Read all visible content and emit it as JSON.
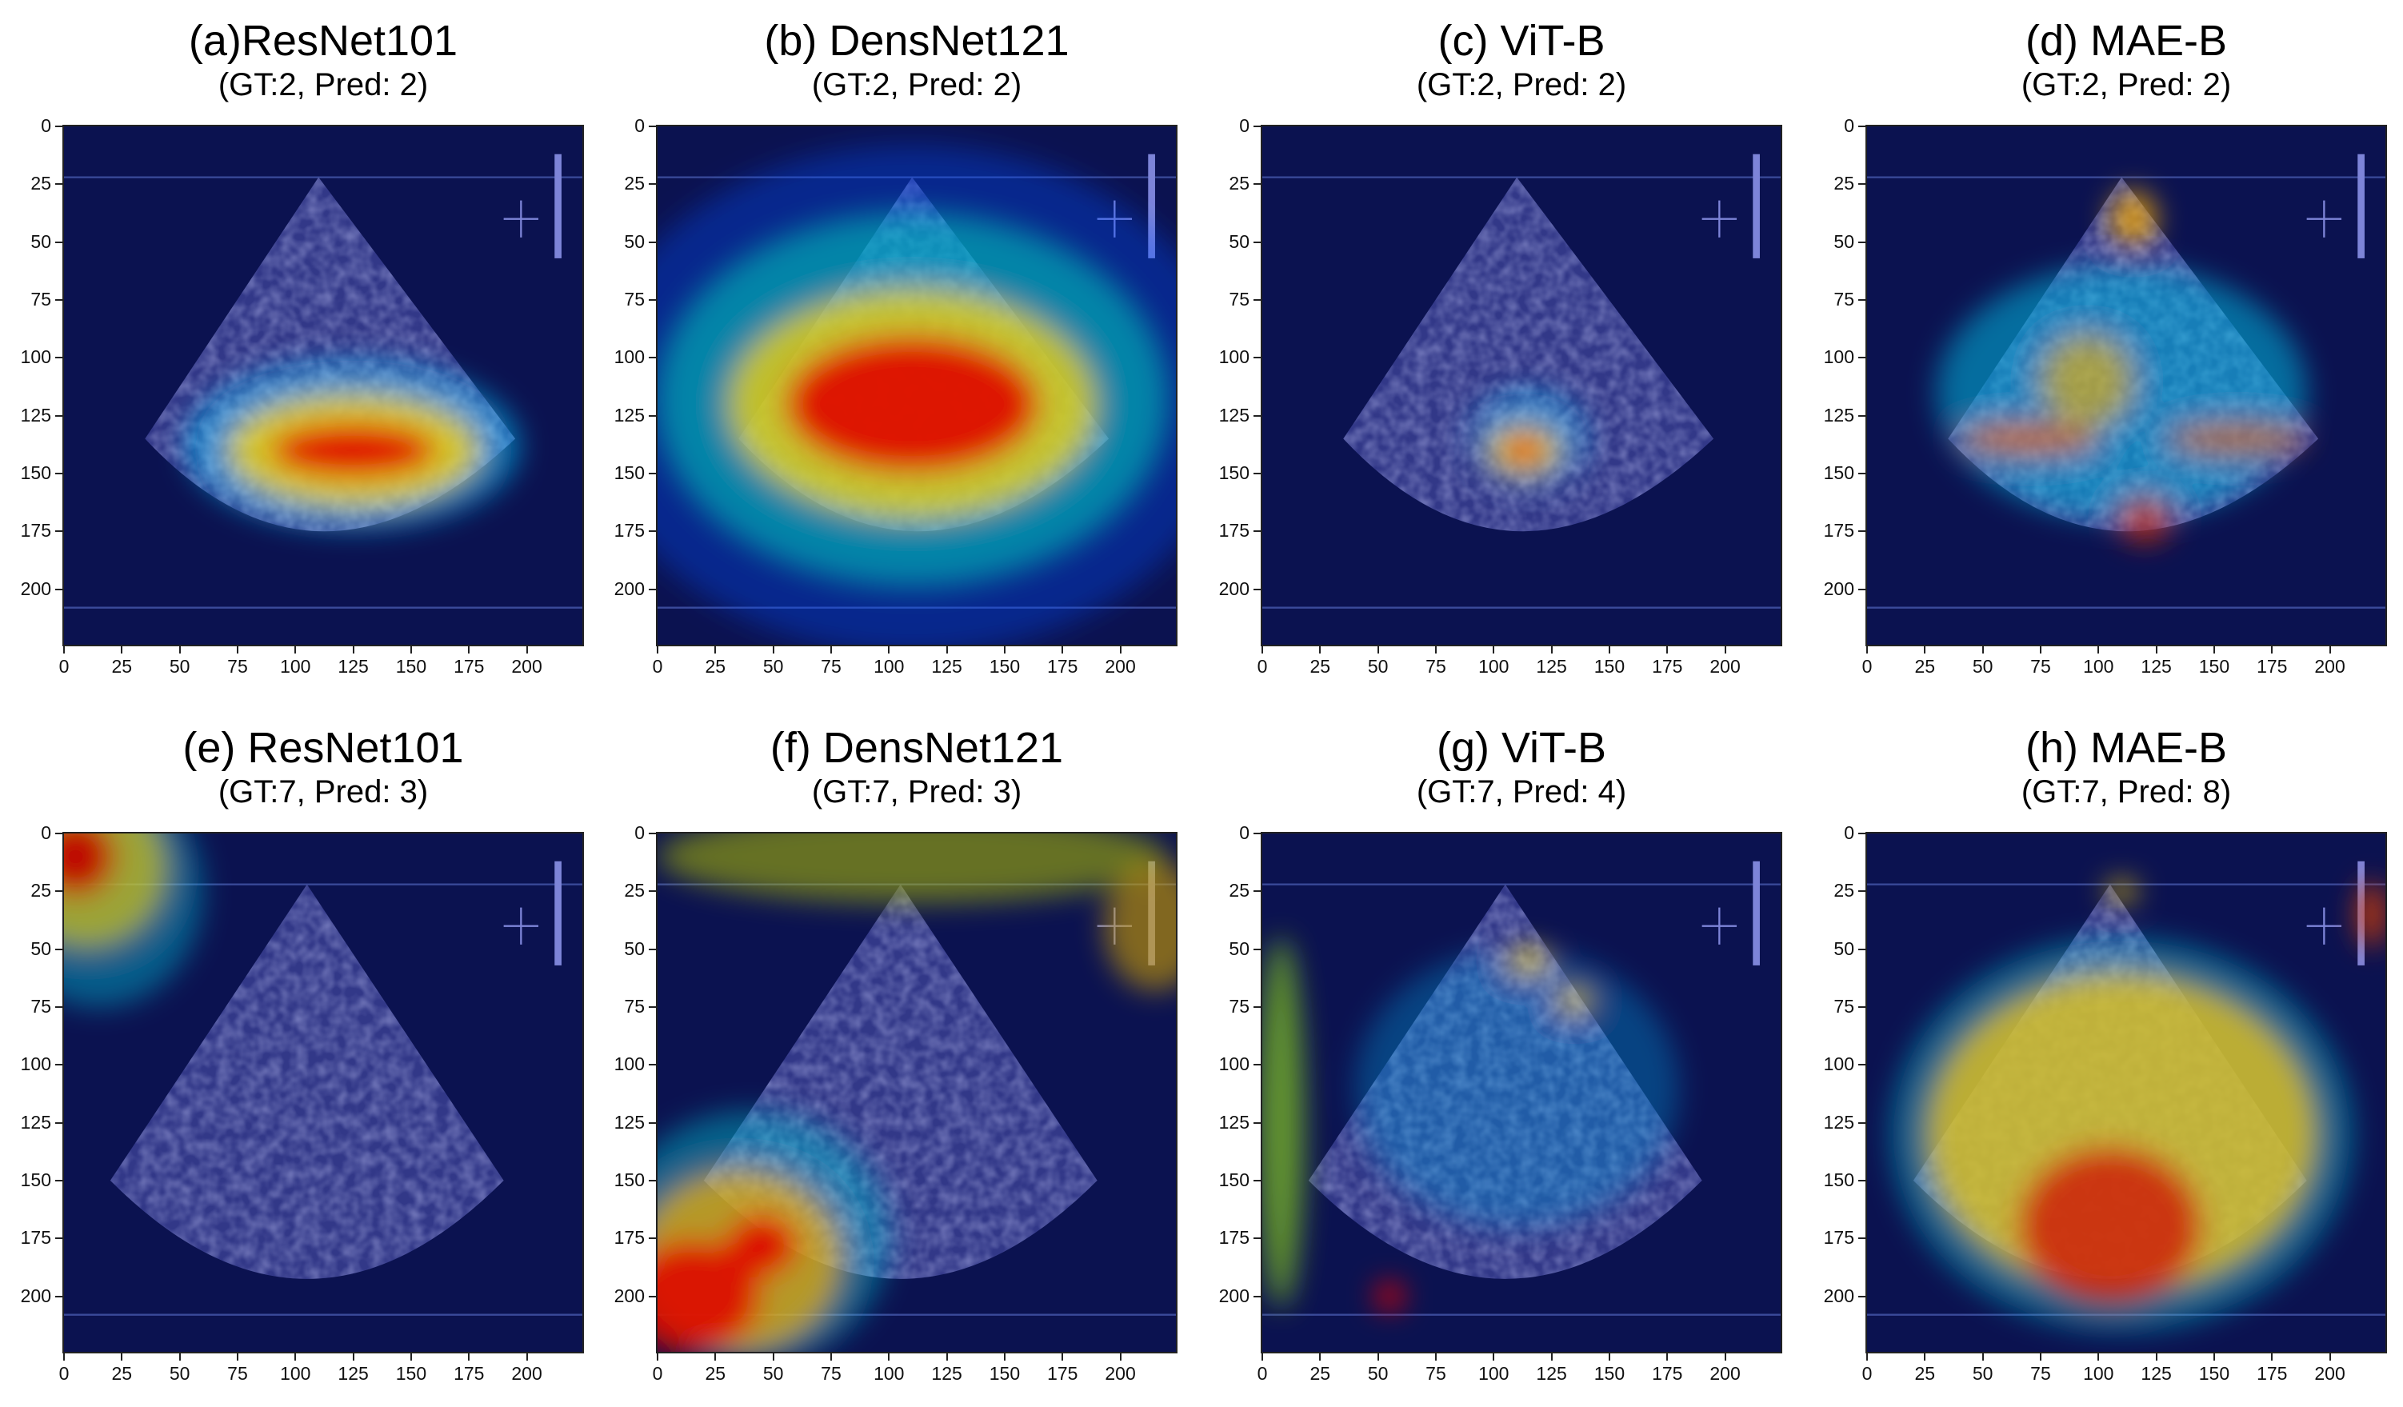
{
  "panels": [
    {
      "id": "a",
      "title": "(a)ResNet101",
      "subtitle": "(GT:2, Pred: 2)",
      "row": 0,
      "col": 0,
      "fan": "narrow",
      "heat": [
        {
          "cx": 125,
          "cy": 140,
          "rx": 36,
          "ry": 12,
          "color": "#e00000",
          "alpha": 0.95
        },
        {
          "cx": 125,
          "cy": 140,
          "rx": 55,
          "ry": 25,
          "color": "#ffd400",
          "alpha": 0.8
        },
        {
          "cx": 125,
          "cy": 138,
          "rx": 72,
          "ry": 36,
          "color": "#00c8ff",
          "alpha": 0.55
        }
      ]
    },
    {
      "id": "b",
      "title": "(b) DensNet121",
      "subtitle": "(GT:2, Pred: 2)",
      "row": 0,
      "col": 1,
      "fan": "narrow",
      "heat": [
        {
          "cx": 110,
          "cy": 120,
          "rx": 55,
          "ry": 30,
          "color": "#e00000",
          "alpha": 0.9
        },
        {
          "cx": 110,
          "cy": 120,
          "rx": 80,
          "ry": 50,
          "color": "#ffd400",
          "alpha": 0.75
        },
        {
          "cx": 110,
          "cy": 118,
          "rx": 110,
          "ry": 80,
          "color": "#00d0c0",
          "alpha": 0.55
        },
        {
          "cx": 110,
          "cy": 118,
          "rx": 140,
          "ry": 110,
          "color": "#0050ff",
          "alpha": 0.35
        }
      ]
    },
    {
      "id": "c",
      "title": "(c) ViT-B",
      "subtitle": "(GT:2, Pred: 2)",
      "row": 0,
      "col": 2,
      "fan": "narrow",
      "heat": [
        {
          "cx": 113,
          "cy": 140,
          "rx": 9,
          "ry": 6,
          "color": "#e00000",
          "alpha": 0.95
        },
        {
          "cx": 113,
          "cy": 140,
          "rx": 16,
          "ry": 11,
          "color": "#ffd400",
          "alpha": 0.8
        },
        {
          "cx": 115,
          "cy": 135,
          "rx": 24,
          "ry": 20,
          "color": "#00c8ff",
          "alpha": 0.5
        }
      ]
    },
    {
      "id": "d",
      "title": "(d) MAE-B",
      "subtitle": "(GT:2, Pred: 2)",
      "row": 0,
      "col": 3,
      "fan": "narrow",
      "heat": [
        {
          "cx": 70,
          "cy": 135,
          "rx": 30,
          "ry": 7,
          "color": "#e06000",
          "alpha": 0.8
        },
        {
          "cx": 160,
          "cy": 135,
          "rx": 30,
          "ry": 7,
          "color": "#e06000",
          "alpha": 0.7
        },
        {
          "cx": 115,
          "cy": 40,
          "rx": 10,
          "ry": 12,
          "color": "#ffb000",
          "alpha": 0.8
        },
        {
          "cx": 95,
          "cy": 110,
          "rx": 20,
          "ry": 20,
          "color": "#ffb000",
          "alpha": 0.6
        },
        {
          "cx": 120,
          "cy": 170,
          "rx": 12,
          "ry": 10,
          "color": "#e03000",
          "alpha": 0.7
        },
        {
          "cx": 110,
          "cy": 115,
          "rx": 80,
          "ry": 55,
          "color": "#00b8e0",
          "alpha": 0.55
        }
      ]
    },
    {
      "id": "e",
      "title": "(e) ResNet101",
      "subtitle": "(GT:7, Pred: 3)",
      "row": 1,
      "col": 0,
      "fan": "wide",
      "heat": [
        {
          "cx": 5,
          "cy": 10,
          "rx": 18,
          "ry": 18,
          "color": "#c00000",
          "alpha": 0.95
        },
        {
          "cx": 10,
          "cy": 15,
          "rx": 35,
          "ry": 35,
          "color": "#ffd400",
          "alpha": 0.6
        },
        {
          "cx": 15,
          "cy": 25,
          "rx": 45,
          "ry": 50,
          "color": "#00b8d0",
          "alpha": 0.45
        }
      ]
    },
    {
      "id": "f",
      "title": "(f) DensNet121",
      "subtitle": "(GT:7, Pred: 3)",
      "row": 1,
      "col": 1,
      "fan": "wide",
      "heat": [
        {
          "cx": 45,
          "cy": 178,
          "rx": 16,
          "ry": 14,
          "color": "#e00000",
          "alpha": 0.9
        },
        {
          "cx": 15,
          "cy": 200,
          "rx": 30,
          "ry": 25,
          "color": "#e00000",
          "alpha": 0.85
        },
        {
          "cx": 35,
          "cy": 185,
          "rx": 45,
          "ry": 40,
          "color": "#ffb000",
          "alpha": 0.7
        },
        {
          "cx": 40,
          "cy": 175,
          "rx": 60,
          "ry": 55,
          "color": "#00c0d0",
          "alpha": 0.45
        },
        {
          "cx": 110,
          "cy": 10,
          "rx": 110,
          "ry": 20,
          "color": "#b0c000",
          "alpha": 0.55
        },
        {
          "cx": 215,
          "cy": 40,
          "rx": 22,
          "ry": 28,
          "color": "#d0a000",
          "alpha": 0.6
        }
      ]
    },
    {
      "id": "g",
      "title": "(g) ViT-B",
      "subtitle": "(GT:7, Pred: 4)",
      "row": 1,
      "col": 2,
      "fan": "wide",
      "heat": [
        {
          "cx": 8,
          "cy": 125,
          "rx": 10,
          "ry": 80,
          "color": "#80c020",
          "alpha": 0.75
        },
        {
          "cx": 55,
          "cy": 200,
          "rx": 6,
          "ry": 6,
          "color": "#e00000",
          "alpha": 0.95
        },
        {
          "cx": 115,
          "cy": 55,
          "rx": 10,
          "ry": 6,
          "color": "#ffd400",
          "alpha": 0.75
        },
        {
          "cx": 135,
          "cy": 72,
          "rx": 8,
          "ry": 6,
          "color": "#ffd400",
          "alpha": 0.7
        },
        {
          "cx": 110,
          "cy": 110,
          "rx": 70,
          "ry": 60,
          "color": "#00a0e0",
          "alpha": 0.35
        }
      ]
    },
    {
      "id": "h",
      "title": "(h) MAE-B",
      "subtitle": "(GT:7, Pred: 8)",
      "row": 1,
      "col": 3,
      "fan": "wide",
      "heat": [
        {
          "cx": 105,
          "cy": 170,
          "rx": 40,
          "ry": 35,
          "color": "#d00000",
          "alpha": 0.7
        },
        {
          "cx": 110,
          "cy": 130,
          "rx": 85,
          "ry": 70,
          "color": "#e8c020",
          "alpha": 0.8
        },
        {
          "cx": 110,
          "cy": 130,
          "rx": 100,
          "ry": 85,
          "color": "#00c0d0",
          "alpha": 0.45
        },
        {
          "cx": 218,
          "cy": 35,
          "rx": 6,
          "ry": 14,
          "color": "#e04000",
          "alpha": 0.85
        },
        {
          "cx": 110,
          "cy": 25,
          "rx": 7,
          "ry": 5,
          "color": "#ffd400",
          "alpha": 0.7
        }
      ]
    }
  ],
  "axes": {
    "yticks": [
      "0",
      "25",
      "50",
      "75",
      "100",
      "125",
      "150",
      "175",
      "200"
    ],
    "xticks": [
      "0",
      "25",
      "50",
      "75",
      "100",
      "125",
      "150",
      "175",
      "200"
    ],
    "extent": 224
  }
}
